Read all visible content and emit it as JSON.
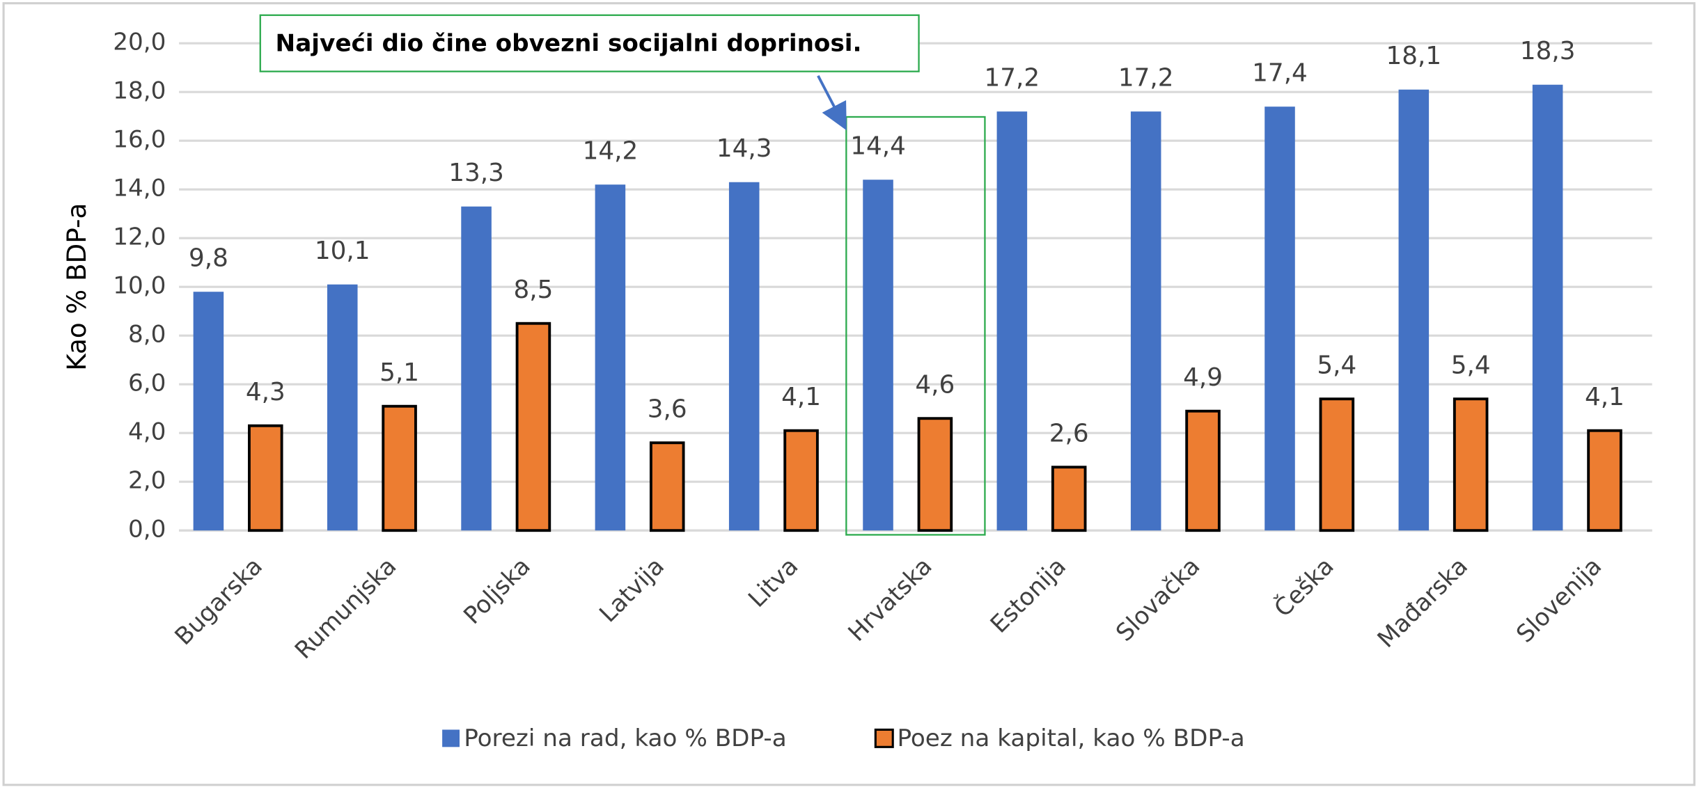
{
  "chart_data": {
    "type": "bar",
    "y_label": "Kao % BDP-a",
    "annotations": [
      {
        "text": "Najveći dio čine obvezni socijalni doprinosi.",
        "category": "Hrvatska"
      }
    ],
    "categories": [
      "Bugarska",
      "Rumunjska",
      "Poljska",
      "Latvija",
      "Litva",
      "Hrvatska",
      "Estonija",
      "Slovačka",
      "Češka",
      "Mađarska",
      "Slovenija"
    ],
    "series": [
      {
        "name": "Porezi na rad, kao % BDP-a",
        "color": "#4472c4",
        "values": [
          9.8,
          10.1,
          13.3,
          14.2,
          14.3,
          14.4,
          17.2,
          17.2,
          17.4,
          18.1,
          18.3
        ],
        "value_labels": [
          "9,8",
          "10,1",
          "13,3",
          "14,2",
          "14,3",
          "14,4",
          "17,2",
          "17,2",
          "17,4",
          "18,1",
          "18,3"
        ]
      },
      {
        "name": "Poez na kapital, kao % BDP-a",
        "color": "#ed7d31",
        "values": [
          4.3,
          5.1,
          8.5,
          3.6,
          4.1,
          4.6,
          2.6,
          4.9,
          5.4,
          5.4,
          4.1
        ],
        "value_labels": [
          "4,3",
          "5,1",
          "8,5",
          "3,6",
          "4,1",
          "4,6",
          "2,6",
          "4,9",
          "5,4",
          "5,4",
          "4,1"
        ]
      }
    ],
    "ylim": [
      0,
      20
    ],
    "yticks": [
      {
        "value": 0,
        "label": "0,0"
      },
      {
        "value": 2,
        "label": "2,0"
      },
      {
        "value": 4,
        "label": "4,0"
      },
      {
        "value": 6,
        "label": "6,0"
      },
      {
        "value": 8,
        "label": "8,0"
      },
      {
        "value": 10,
        "label": "10,0"
      },
      {
        "value": 12,
        "label": "12,0"
      },
      {
        "value": 14,
        "label": "14,0"
      },
      {
        "value": 16,
        "label": "16,0"
      },
      {
        "value": 18,
        "label": "18,0"
      },
      {
        "value": 20,
        "label": "20,0"
      }
    ],
    "grid": true,
    "legend": "bottom"
  }
}
